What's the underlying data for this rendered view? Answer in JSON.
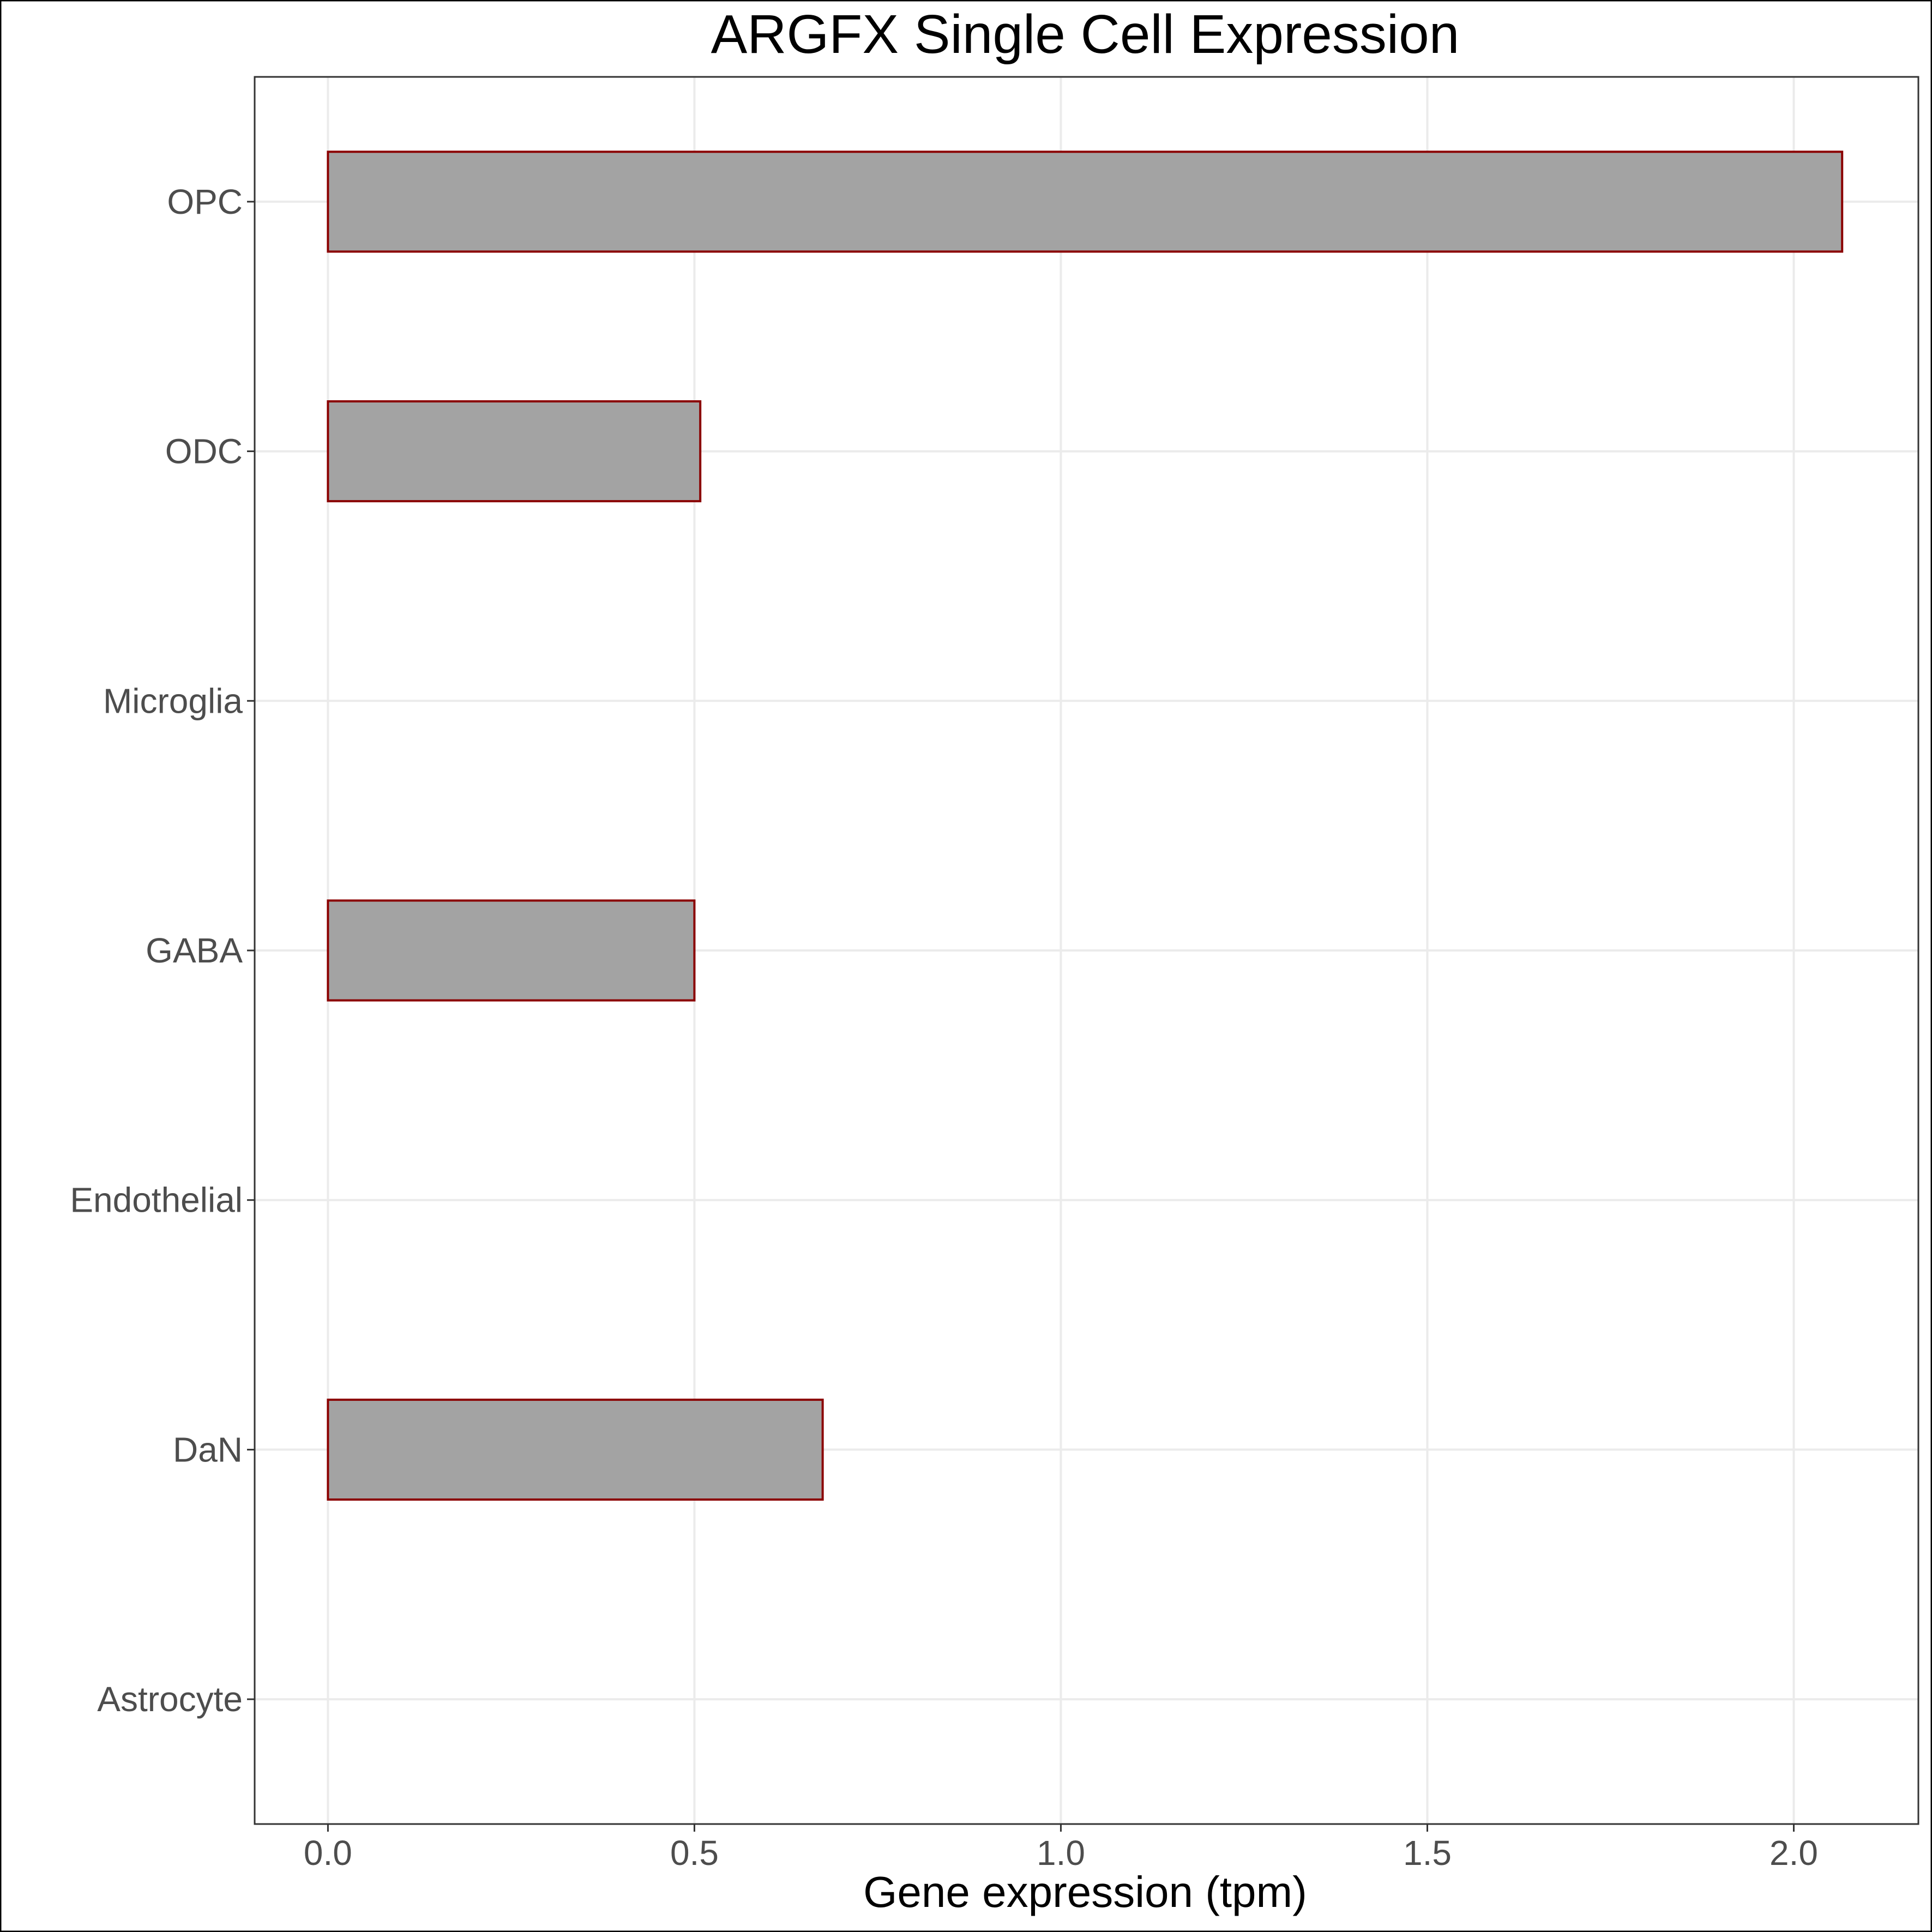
{
  "chart_data": {
    "type": "bar",
    "orientation": "horizontal",
    "title": "ARGFX Single Cell Expression",
    "xlabel": "Gene expression (tpm)",
    "ylabel": "",
    "categories": [
      "Astrocyte",
      "DaN",
      "Endothelial",
      "GABA",
      "Microglia",
      "ODC",
      "OPC"
    ],
    "values": [
      0.0,
      0.675,
      0.0,
      0.5,
      0.0,
      0.508,
      2.066
    ],
    "xlim": [
      -0.1,
      2.17
    ],
    "xticks": [
      0.0,
      0.5,
      1.0,
      1.5,
      2.0
    ],
    "xtick_labels": [
      "0.0",
      "0.5",
      "1.0",
      "1.5",
      "2.0"
    ],
    "grid": true,
    "colors": {
      "bar_fill": "#a3a3a3",
      "bar_outline": "#8b0000",
      "grid": "#ebebeb",
      "panel_border": "#333333",
      "tick_text": "#4d4d4d",
      "text": "#000000"
    }
  }
}
